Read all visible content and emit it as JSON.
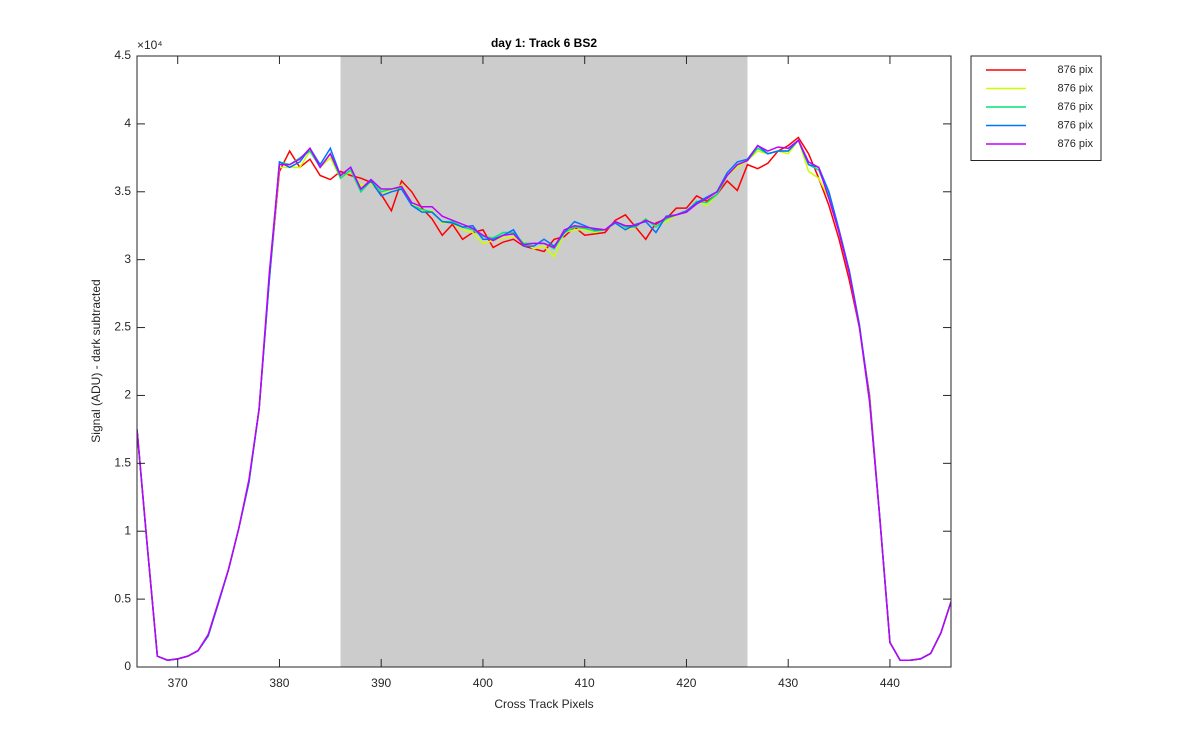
{
  "chart_data": {
    "type": "line",
    "title": "day 1: Track 6  BS2",
    "x_label": "Cross Track Pixels",
    "y_label": "Signal (ADU) - dark subtracted",
    "y_exponent_label": "×10⁴",
    "xlim": [
      366,
      446
    ],
    "xticks": [
      370,
      380,
      390,
      400,
      410,
      420,
      430,
      440
    ],
    "ylim": [
      0,
      4.5
    ],
    "yticks": [
      0,
      0.5,
      1,
      1.5,
      2,
      2.5,
      3,
      3.5,
      4,
      4.5
    ],
    "shaded_region": [
      386,
      426
    ],
    "shaded_color": "#cccccc",
    "legend_location": "northeastoutside",
    "x": [
      366,
      367,
      368,
      369,
      370,
      371,
      372,
      373,
      374,
      375,
      376,
      377,
      378,
      379,
      380,
      381,
      382,
      383,
      384,
      385,
      386,
      387,
      388,
      389,
      390,
      391,
      392,
      393,
      394,
      395,
      396,
      397,
      398,
      399,
      400,
      401,
      402,
      403,
      404,
      405,
      406,
      407,
      408,
      409,
      410,
      411,
      412,
      413,
      414,
      415,
      416,
      417,
      418,
      419,
      420,
      421,
      422,
      423,
      424,
      425,
      426,
      427,
      428,
      429,
      430,
      431,
      432,
      433,
      434,
      435,
      436,
      437,
      438,
      439,
      440,
      441,
      442,
      443,
      444,
      445,
      446
    ],
    "series": [
      {
        "name": "876 pix",
        "color": "#ff0000",
        "values": [
          1.75,
          0.9,
          0.08,
          0.05,
          0.06,
          0.08,
          0.12,
          0.23,
          0.47,
          0.72,
          1.02,
          1.36,
          1.9,
          2.85,
          3.65,
          3.8,
          3.68,
          3.74,
          3.62,
          3.59,
          3.65,
          3.62,
          3.6,
          3.57,
          3.48,
          3.36,
          3.58,
          3.5,
          3.38,
          3.3,
          3.18,
          3.26,
          3.15,
          3.2,
          3.22,
          3.09,
          3.13,
          3.15,
          3.1,
          3.08,
          3.06,
          3.15,
          3.17,
          3.24,
          3.18,
          3.19,
          3.2,
          3.29,
          3.33,
          3.24,
          3.15,
          3.27,
          3.3,
          3.38,
          3.38,
          3.47,
          3.43,
          3.48,
          3.58,
          3.51,
          3.7,
          3.67,
          3.71,
          3.8,
          3.84,
          3.9,
          3.78,
          3.6,
          3.4,
          3.15,
          2.85,
          2.5,
          2.0,
          1.1,
          0.18,
          0.05,
          0.05,
          0.06,
          0.1,
          0.25,
          0.48
        ]
      },
      {
        "name": "876 pix",
        "color": "#ccff00",
        "values": [
          1.75,
          0.9,
          0.08,
          0.05,
          0.06,
          0.08,
          0.12,
          0.23,
          0.47,
          0.72,
          1.02,
          1.36,
          1.9,
          2.85,
          3.68,
          3.68,
          3.68,
          3.8,
          3.68,
          3.75,
          3.6,
          3.65,
          3.55,
          3.56,
          3.5,
          3.5,
          3.55,
          3.42,
          3.36,
          3.36,
          3.27,
          3.27,
          3.22,
          3.2,
          3.12,
          3.14,
          3.16,
          3.17,
          3.13,
          3.08,
          3.1,
          3.02,
          3.2,
          3.22,
          3.22,
          3.2,
          3.22,
          3.27,
          3.22,
          3.24,
          3.3,
          3.25,
          3.28,
          3.33,
          3.35,
          3.43,
          3.4,
          3.48,
          3.62,
          3.68,
          3.73,
          3.8,
          3.78,
          3.8,
          3.78,
          3.88,
          3.65,
          3.6,
          3.45,
          3.2,
          2.9,
          2.5,
          1.98,
          1.1,
          0.18,
          0.05,
          0.05,
          0.06,
          0.1,
          0.25,
          0.48
        ]
      },
      {
        "name": "876 pix",
        "color": "#00e676",
        "values": [
          1.75,
          0.9,
          0.08,
          0.05,
          0.06,
          0.08,
          0.12,
          0.23,
          0.47,
          0.72,
          1.02,
          1.36,
          1.9,
          2.85,
          3.72,
          3.7,
          3.75,
          3.8,
          3.68,
          3.78,
          3.6,
          3.66,
          3.5,
          3.58,
          3.5,
          3.52,
          3.53,
          3.4,
          3.37,
          3.35,
          3.28,
          3.28,
          3.24,
          3.22,
          3.17,
          3.16,
          3.2,
          3.2,
          3.12,
          3.12,
          3.12,
          3.08,
          3.2,
          3.24,
          3.23,
          3.21,
          3.22,
          3.28,
          3.24,
          3.24,
          3.3,
          3.24,
          3.3,
          3.33,
          3.35,
          3.43,
          3.42,
          3.48,
          3.62,
          3.7,
          3.73,
          3.82,
          3.78,
          3.8,
          3.8,
          3.88,
          3.7,
          3.66,
          3.48,
          3.2,
          2.92,
          2.52,
          1.96,
          1.1,
          0.18,
          0.05,
          0.05,
          0.06,
          0.1,
          0.25,
          0.48
        ]
      },
      {
        "name": "876 pix",
        "color": "#0073ff",
        "values": [
          1.75,
          0.9,
          0.08,
          0.05,
          0.06,
          0.08,
          0.12,
          0.23,
          0.47,
          0.72,
          1.02,
          1.36,
          1.9,
          2.85,
          3.72,
          3.68,
          3.72,
          3.82,
          3.7,
          3.82,
          3.62,
          3.68,
          3.52,
          3.58,
          3.47,
          3.5,
          3.52,
          3.4,
          3.35,
          3.35,
          3.28,
          3.27,
          3.24,
          3.25,
          3.15,
          3.15,
          3.18,
          3.22,
          3.1,
          3.1,
          3.15,
          3.1,
          3.2,
          3.28,
          3.25,
          3.22,
          3.22,
          3.27,
          3.22,
          3.26,
          3.28,
          3.2,
          3.32,
          3.33,
          3.36,
          3.42,
          3.46,
          3.5,
          3.64,
          3.72,
          3.74,
          3.84,
          3.78,
          3.8,
          3.8,
          3.88,
          3.7,
          3.68,
          3.5,
          3.22,
          2.92,
          2.52,
          1.97,
          1.1,
          0.18,
          0.05,
          0.05,
          0.06,
          0.1,
          0.25,
          0.48
        ]
      },
      {
        "name": "876 pix",
        "color": "#c000ff",
        "values": [
          1.75,
          0.9,
          0.08,
          0.05,
          0.06,
          0.08,
          0.12,
          0.24,
          0.48,
          0.72,
          1.02,
          1.38,
          1.9,
          2.9,
          3.7,
          3.7,
          3.74,
          3.82,
          3.68,
          3.78,
          3.62,
          3.68,
          3.52,
          3.59,
          3.52,
          3.52,
          3.54,
          3.42,
          3.39,
          3.39,
          3.32,
          3.29,
          3.26,
          3.23,
          3.18,
          3.14,
          3.18,
          3.19,
          3.11,
          3.12,
          3.12,
          3.09,
          3.22,
          3.25,
          3.24,
          3.23,
          3.22,
          3.28,
          3.25,
          3.25,
          3.29,
          3.26,
          3.31,
          3.33,
          3.35,
          3.41,
          3.45,
          3.5,
          3.62,
          3.7,
          3.73,
          3.84,
          3.8,
          3.83,
          3.82,
          3.88,
          3.72,
          3.68,
          3.45,
          3.2,
          2.9,
          2.5,
          1.95,
          1.1,
          0.18,
          0.05,
          0.05,
          0.06,
          0.1,
          0.25,
          0.48
        ]
      }
    ]
  }
}
